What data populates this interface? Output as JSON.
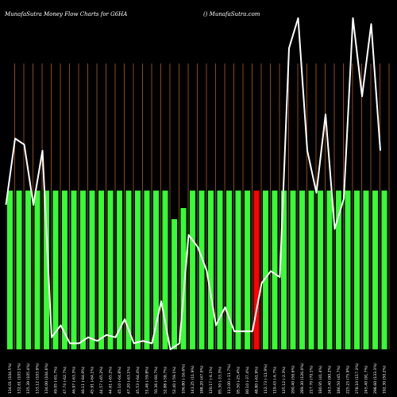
{
  "chart_data": {
    "type": "bar",
    "title": "MunafaSutra  Money Flow  Charts for G6HA",
    "watermark": "() MunafaSutra.com",
    "categories": [
      "134.01 (104.5%)",
      "132.61 (103.1%)",
      "135.39 (105.4%)",
      "133.12 (103.9%)",
      "134.00 (104.6%)",
      "49.05 (-61.7%)",
      "47.74 (-62.7%)",
      "46.97 (-63.3%)",
      "46.11 (-64.0%)",
      "45.91 (-64.1%)",
      "44.57 (-65.2%)",
      "44.61 (-65.2%)",
      "45.10 (-64.8%)",
      "47.20 (-63.1%)",
      "45.53 (-64.4%)",
      "51.46 (-59.8%)",
      "50.36 (-60.7%)",
      "52.88 (-58.7%)",
      "52.40 (-59.1%)",
      "106.80 (-16.6%)",
      "143.25 (11.9%)",
      "188.20 (47.0%)",
      "120.17 (-6.1%)",
      "85.30 (-33.3%)",
      "113.00 (-11.7%)",
      "95.50 (-25.4%)",
      "80.10 (-37.4%)",
      "48.80 (-61.9%)",
      "112.73 (-11.9%)",
      "119.43 (-6.7%)",
      "125.12 (-2.3%)",
      "200.40 (56.6%)",
      "289.30 (126.0%)",
      "217.70 (70.1%)",
      "180.95 (41.4%)",
      "243.40 (90.2%)",
      "186.50 (45.7%)",
      "225.23 (75.9%)",
      "278.10 (117.3%)",
      "245.40 (91.7%)",
      "298.60 (133.3%)",
      "192.30 (50.2%)"
    ],
    "flow_status": [
      "positive",
      "positive",
      "positive",
      "positive",
      "positive",
      "positive",
      "positive",
      "positive",
      "positive",
      "positive",
      "positive",
      "positive",
      "positive",
      "positive",
      "positive",
      "positive",
      "positive",
      "positive",
      "positive",
      "positive",
      "positive",
      "positive",
      "positive",
      "positive",
      "positive",
      "positive",
      "positive",
      "negative",
      "positive",
      "positive",
      "positive",
      "positive",
      "positive",
      "positive",
      "positive",
      "positive",
      "positive",
      "positive",
      "positive",
      "positive",
      "positive",
      "positive"
    ],
    "bar_levels": [
      1,
      1,
      1,
      1,
      1,
      1,
      1,
      1,
      1,
      1,
      1,
      1,
      1,
      1,
      1,
      1,
      1,
      1,
      0.82,
      0.89,
      1,
      1,
      1,
      1,
      1,
      1,
      1,
      1,
      1,
      1,
      1,
      1,
      1,
      1,
      1,
      1,
      1,
      1,
      1,
      1,
      1,
      1
    ],
    "price_line": [
      110,
      165,
      160,
      110,
      155,
      0,
      10,
      -5,
      -5,
      0,
      -3,
      2,
      0,
      15,
      -5,
      -3,
      -5,
      30,
      -10,
      -5,
      85,
      75,
      55,
      10,
      25,
      5,
      5,
      5,
      45,
      55,
      50,
      240,
      265,
      155,
      120,
      185,
      90,
      115,
      265,
      200,
      260,
      155
    ],
    "colors": {
      "background": "#000000",
      "positive_bar": "#33ff33",
      "negative_bar": "#ff0000",
      "price_line": "#ffffff",
      "grid_line": "#b05a1a"
    }
  }
}
